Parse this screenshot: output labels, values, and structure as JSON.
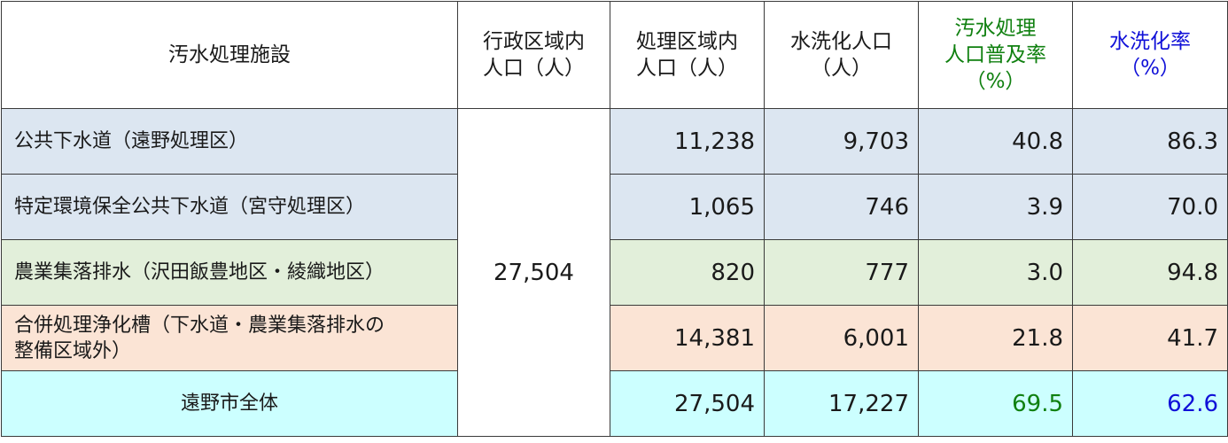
{
  "headers": {
    "facility": "汚水処理施設",
    "admin_pop": [
      "行政区域内",
      "人口（人）"
    ],
    "treat_pop": [
      "処理区域内",
      "人口（人）"
    ],
    "flush_pop": [
      "水洗化人口",
      "（人）"
    ],
    "sewage_rate": [
      "汚水処理",
      "人口普及率",
      "（%）"
    ],
    "flush_rate": [
      "水洗化率",
      "（%）"
    ]
  },
  "admin_population": "27,504",
  "rows": [
    {
      "name": [
        "公共下水道（遠野処理区）"
      ],
      "treat": "11,238",
      "flush": "9,703",
      "sewage_rate": "40.8",
      "flush_rate": "86.3"
    },
    {
      "name": [
        "特定環境保全公共下水道（宮守処理区）"
      ],
      "treat": "1,065",
      "flush": "746",
      "sewage_rate": "3.9",
      "flush_rate": "70.0"
    },
    {
      "name": [
        "農業集落排水（沢田飯豊地区・綾織地区）"
      ],
      "treat": "820",
      "flush": "777",
      "sewage_rate": "3.0",
      "flush_rate": "94.8"
    },
    {
      "name": [
        "合併処理浄化槽（下水道・農業集落排水の",
        "整備区域外）"
      ],
      "treat": "14,381",
      "flush": "6,001",
      "sewage_rate": "21.8",
      "flush_rate": "41.7"
    }
  ],
  "total": {
    "name": "遠野市全体",
    "treat": "27,504",
    "flush": "17,227",
    "sewage_rate": "69.5",
    "flush_rate": "62.6"
  },
  "colors": {
    "sewer": "#dce6f1",
    "rural": "#e2efda",
    "septic": "#fbe4d5",
    "total": "#ccffff",
    "green_text": "#108010",
    "blue_text": "#1010d8"
  }
}
